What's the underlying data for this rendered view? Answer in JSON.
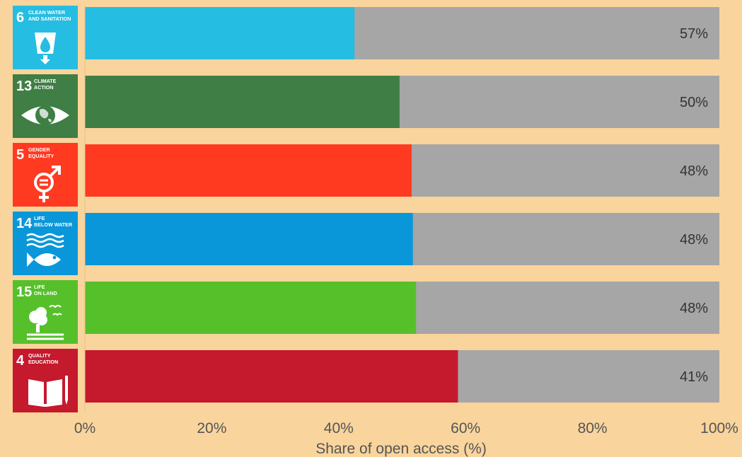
{
  "chart_data": {
    "type": "bar",
    "orientation": "horizontal",
    "stacked": true,
    "xlabel": "Share of open access (%)",
    "xlim": [
      0,
      100
    ],
    "xticks": [
      "0%",
      "20%",
      "40%",
      "60%",
      "80%",
      "100%"
    ],
    "grid": false,
    "legend": "none",
    "rows": [
      {
        "goal_number": "6",
        "goal_title_lines": [
          "CLEAN WATER",
          "AND SANITATION"
        ],
        "goal_icon": "water-drop-icon",
        "goal_color": "#26bde2",
        "colored_value": 42.5,
        "label": "57%"
      },
      {
        "goal_number": "13",
        "goal_title_lines": [
          "CLIMATE",
          "ACTION"
        ],
        "goal_icon": "eye-globe-icon",
        "goal_color": "#3f7e44",
        "colored_value": 49.6,
        "label": "50%"
      },
      {
        "goal_number": "5",
        "goal_title_lines": [
          "GENDER",
          "EQUALITY"
        ],
        "goal_icon": "gender-equality-icon",
        "goal_color": "#ff3a21",
        "colored_value": 51.5,
        "label": "48%"
      },
      {
        "goal_number": "14",
        "goal_title_lines": [
          "LIFE",
          "BELOW WATER"
        ],
        "goal_icon": "fish-waves-icon",
        "goal_color": "#0a97d9",
        "colored_value": 51.7,
        "label": "48%"
      },
      {
        "goal_number": "15",
        "goal_title_lines": [
          "LIFE",
          "ON LAND"
        ],
        "goal_icon": "tree-birds-icon",
        "goal_color": "#56c02b",
        "colored_value": 52.2,
        "label": "48%"
      },
      {
        "goal_number": "4",
        "goal_title_lines": [
          "QUALITY",
          "EDUCATION"
        ],
        "goal_icon": "book-pencil-icon",
        "goal_color": "#c5192d",
        "colored_value": 58.8,
        "label": "41%"
      }
    ],
    "remainder_color": "#a6a6a6"
  },
  "colors": {
    "background": "#f9d49c",
    "remainder": "#a6a6a6",
    "label_text": "#333333",
    "axis_text": "#555555"
  }
}
